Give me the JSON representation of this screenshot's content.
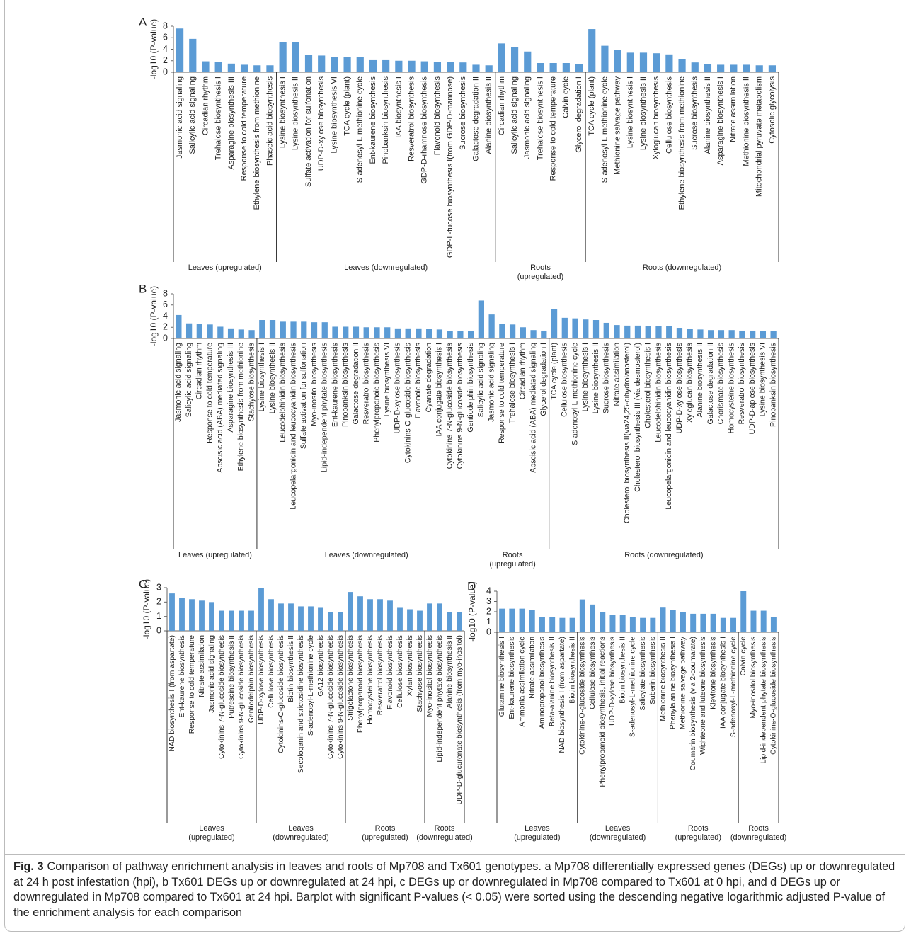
{
  "chart_data": [
    {
      "type": "bar",
      "panel": "A",
      "ylabel": "-log10 (P-value)",
      "ylim": [
        0,
        8
      ],
      "yticks": [
        0,
        2,
        4,
        6,
        8
      ],
      "color": "#5b9bd5",
      "groups": [
        {
          "name": "Leaves (upregulated)",
          "categories": [
            "Jasmonic acid signaling",
            "Salicylic acid signaling",
            "Circadian rhythm",
            "Trehalose biosynthesis I",
            "Asparagine biosynthesis III",
            "Response to cold temperature",
            "Ethylene biosynthesis from methionine",
            "Phaseic acid biosynthesis"
          ],
          "values": [
            7.6,
            5.8,
            1.9,
            1.8,
            1.5,
            1.3,
            1.2,
            1.2
          ]
        },
        {
          "name": "Leaves (downregulated)",
          "categories": [
            "Lysine biosynthesis I",
            "Lysine biosynthesis II",
            "Sulfate activation for sulfonation",
            "UDP-D-xylose biosynthesis",
            "Lysine biosynthesis VI",
            "TCA cycle (plant)",
            "S-adenosyl-L-methionine cycle",
            "Ent-kaurene biosynthesis",
            "Pinobanksin biosynthesis",
            "IAA biosynthesis I",
            "Resveratrol biosynthesis",
            "GDP-D-rhamnose biosynthesis",
            "Flavonoid biosynthesis",
            "GDP-L-fucose biosynthesis I(from GDP-D-mannose)",
            "Sucrose biosynthesis",
            "Galactose degradation II",
            "Alanine biosynthesis II"
          ],
          "values": [
            5.2,
            5.2,
            3.0,
            2.9,
            2.7,
            2.7,
            2.6,
            2.1,
            2.1,
            2.0,
            2.0,
            1.9,
            1.8,
            1.8,
            1.7,
            1.3,
            1.2
          ]
        },
        {
          "name": "Roots\n(upregulated)",
          "categories": [
            "Circadian rhythm",
            "Salicylic acid signaling",
            "Jasmonic acid signaling",
            "Trehalose biosynthesis I",
            "Response to cold temperature",
            "Calvin cycle",
            "Glycerol degradation I"
          ],
          "values": [
            5.0,
            4.4,
            3.6,
            1.6,
            1.6,
            1.6,
            1.4
          ]
        },
        {
          "name": "Roots (downregulated)",
          "categories": [
            "TCA cycle (plant)",
            "S-adenosyl-L-methionine cycle",
            "Methionine salvage pathway",
            "Lysine biosynthesis I",
            "Lysine biosynthesis II",
            "Xyloglucan biosynthesis",
            "Cellulose biosynthesis",
            "Ethylene biosynthesis from methionine",
            "Sucrose biosynthesis",
            "Alanine biosynthesis II",
            "Asparagine biosynthesis I",
            "Nitrate assimilation",
            "Methionine biosynthesis II",
            "Mitochondrial pyruvate metabolism",
            "Cytosolic glycolysis"
          ],
          "values": [
            7.5,
            4.6,
            3.9,
            3.4,
            3.4,
            3.3,
            3.1,
            2.3,
            1.7,
            1.4,
            1.3,
            1.3,
            1.3,
            1.2,
            1.2
          ]
        }
      ]
    },
    {
      "type": "bar",
      "panel": "B",
      "ylabel": "-log10 (P-value)",
      "ylim": [
        0,
        8
      ],
      "yticks": [
        0,
        2,
        4,
        6,
        8
      ],
      "color": "#5b9bd5",
      "groups": [
        {
          "name": "Leaves (upregulated)",
          "categories": [
            "Jasmonic acid signaling",
            "Salicylic acid signaling",
            "Circadian rhythm",
            "Response to cold temperature",
            "Abscisic acid (ABA) mediated signaling",
            "Asparagine biosynthesis III",
            "Ethylene biosynthesis from methionine",
            "Stachyose biosynthesis"
          ],
          "values": [
            4.2,
            2.7,
            2.6,
            2.5,
            2.1,
            1.8,
            1.6,
            1.5
          ]
        },
        {
          "name": "Leaves (downregulated)",
          "categories": [
            "Lysine biosynthesis I",
            "Lysine biosynthesis II",
            "Leucodelphinidin biosynthesis",
            "Leucopelargonidin and leucocyanidin biosynthesis",
            "Sulfate activation for sulfonation",
            "Myo-inositol biosynthesis",
            "Lipid-independent phytate biosynthesis",
            "Ent-kaurene biosynthesis",
            "Pinobanksin biosynthesis",
            "Galactose degradation II",
            "Resveratrol biosynthesis",
            "Phenylpropanoid biosynthesis",
            "Lysine biosynthesis VI",
            "UDP-D-xylose biosynthesis",
            "Cytokinins-O-glucoside biosynthesis",
            "Flavonoid biosynthesis",
            "Cyanate degradation",
            "IAA conjugate biosynthesis I",
            "Cytokinins 7-N-glucoside biosynthesis",
            "Cytokinins 9-N-glucoside biosynthesis",
            "Gentiodelphin biosynthesis"
          ],
          "values": [
            3.3,
            3.3,
            3.0,
            3.0,
            3.0,
            2.9,
            2.9,
            2.1,
            2.1,
            2.1,
            2.0,
            2.0,
            2.0,
            1.8,
            1.8,
            1.8,
            1.7,
            1.6,
            1.3,
            1.3,
            1.3
          ]
        },
        {
          "name": "Roots\n(upregulated)",
          "categories": [
            "Salicylic acid signaling",
            "Jasmonic acid signaling",
            "Response to cold temperature",
            "Trehalose biosynthesis I",
            "Circadian rhythm",
            "Abscisic acid (ABA) mediated signaling",
            "Glycerol degradation I"
          ],
          "values": [
            6.8,
            4.3,
            2.6,
            2.5,
            2.0,
            1.5,
            1.4
          ]
        },
        {
          "name": "Roots (downregulated)",
          "categories": [
            "TCA cycle (plant)",
            "Cellulose biosynthesis",
            "S-adenosyl-L-methionine cycle",
            "Lysine biosynthesis I",
            "Lysine biosynthesis II",
            "Sucrose biosynthesis",
            "Nitrate assimilation",
            "Cholesterol biosynthesis II(via24,25-dihydrolanosterol)",
            "Cholesterol biosynthesis III (via desmosterol)",
            "Cholesterol biosynthesis I",
            "Leucodelphinidin biosynthesis",
            "Leucopelargonidin and leucocyanidin biosynthesis",
            "UDP-D-xylose biosynthesis",
            "Xyloglucan biosynthesis",
            "Alanine biosynthesis II",
            "Galactose degradation II",
            "Chorismate biosynthesis",
            "Homocysteine biosynthesis",
            "Resveratrol biosynthesis",
            "UDP-D-apiose biosynthesis",
            "Lysine biosynthesis VI",
            "Pinobanksin biosynthesis"
          ],
          "values": [
            5.3,
            3.7,
            3.6,
            3.4,
            3.3,
            2.8,
            2.4,
            2.3,
            2.3,
            2.2,
            2.2,
            2.2,
            1.9,
            1.7,
            1.6,
            1.5,
            1.5,
            1.5,
            1.4,
            1.4,
            1.3,
            1.3
          ]
        }
      ]
    },
    {
      "type": "bar",
      "panel": "C",
      "ylabel": "-log10 (P-value)",
      "ylim": [
        0,
        3
      ],
      "yticks": [
        0,
        1,
        2,
        3
      ],
      "color": "#5b9bd5",
      "groups": [
        {
          "name": "Leaves\n(upregulated)",
          "categories": [
            "NAD biosynthesis I (from aspartate)",
            "Ent-kaurene biosynthesis",
            "Response to cold temperature",
            "Nitrate assimilation",
            "Jasmonic acid signaling",
            "Cytokinins 7-N-glucoside biosynthesis",
            "Putrescine biosynthesis II",
            "Cytokinins 9-N-glucoside biosynthesis",
            "Gentiodelphin biosynthesis"
          ],
          "values": [
            2.6,
            2.3,
            2.2,
            2.1,
            2.0,
            1.4,
            1.4,
            1.4,
            1.4
          ]
        },
        {
          "name": "Leaves\n(downregulated)",
          "categories": [
            "UDP-D-xylose biosynthesis",
            "Cellulose biosynthesis",
            "Cytokinins-O-glucoside biosynthesis",
            "Biotin biosynthesis II",
            "Secologanin and strictosidine biosynthesis",
            "S-adenosyl-L-methionine cycle",
            "GA12 biosynthesis",
            "Cytokinins 7-N-glucoside biosynthesis",
            "Cytokinins 9-N-glucoside biosynthesis"
          ],
          "values": [
            3.0,
            2.2,
            1.9,
            1.9,
            1.7,
            1.7,
            1.6,
            1.3,
            1.3
          ]
        },
        {
          "name": "Roots\n(upregulated)",
          "categories": [
            "Strigolactone biosynthesis",
            "Phenylpropanoid biosynthesis",
            "Homocysteine biosynthesis",
            "Resveratrol biosynthesis",
            "Flavonoid biosynthesis",
            "Cellulose biosynthesis",
            "Xylan biosynthesis",
            "Stachyose biosynthesis"
          ],
          "values": [
            2.7,
            2.4,
            2.2,
            2.2,
            2.1,
            1.6,
            1.5,
            1.4
          ]
        },
        {
          "name": "Roots\n(downregulated)",
          "categories": [
            "Myo-inositol biosynthesis",
            "Lipid-independent phytate biosynthesis",
            "Alanine biosynthesis II",
            "UDP-D-glucuronate biosynthesis (from myo-inositol)"
          ],
          "values": [
            1.9,
            1.9,
            1.3,
            1.3
          ]
        }
      ]
    },
    {
      "type": "bar",
      "panel": "D",
      "ylabel": "-log10 (P-value)",
      "ylim": [
        0,
        4
      ],
      "yticks": [
        0,
        1,
        2,
        3,
        4
      ],
      "color": "#5b9bd5",
      "groups": [
        {
          "name": "Leaves\n(upregulated)",
          "categories": [
            "Glutamine biosynthesis I",
            "Ent-kaurene biosynthesis",
            "Ammonia assimilation cycle",
            "Nitrate assimilation",
            "Aminopropanol biosynthesis",
            "Beta-alanine biosynthesis II",
            "NAD biosynthesis I (from aspartate)",
            "Biotin biosynthesis II"
          ],
          "values": [
            2.3,
            2.3,
            2.3,
            2.2,
            1.5,
            1.5,
            1.4,
            1.4
          ]
        },
        {
          "name": "Leaves\n(downregulated)",
          "categories": [
            "Cytokinins-O-glucoside biosynthesis",
            "Cellulose biosynthesis",
            "Phenylpropanoid biosynthesis, initial reactions",
            "UDP-D-xylose biosynthesis",
            "Biotin biosynthesis II",
            "S-adenosyl-L-methionine cycle",
            "Salicylate biosynthesis",
            "Suberin biosynthesis"
          ],
          "values": [
            3.2,
            2.7,
            2.0,
            1.7,
            1.7,
            1.5,
            1.4,
            1.4
          ]
        },
        {
          "name": "Roots\n(upregulated)",
          "categories": [
            "Methionine biosynthesis II",
            "Phenylalanine biosynthesis I",
            "Methionine salvage pathway",
            "Coumarin biosynthesis (via 2-coumarate)",
            "Wighteone and luteone biosynthesis",
            "Kievitone biosynthesis",
            "IAA conjugate biosynthesis I",
            "S-adenosyl-L-methionine cycle"
          ],
          "values": [
            2.4,
            2.2,
            2.0,
            1.8,
            1.8,
            1.8,
            1.4,
            1.4
          ]
        },
        {
          "name": "Roots\n(downregulated)",
          "categories": [
            "Calvin cycle",
            "Myo-inositol biosynthesis",
            "Lipid-independent phytate biosynthesis",
            "Cytokinins-O-glucoside biosynthesis"
          ],
          "values": [
            4.0,
            2.1,
            2.1,
            1.5
          ]
        }
      ]
    }
  ],
  "caption": {
    "label": "Fig. 3",
    "text": "Comparison of pathway enrichment analysis in leaves and roots of Mp708 and Tx601 genotypes. a Mp708 differentially expressed genes (DEGs) up or downregulated at 24 h post infestation (hpi), b Tx601 DEGs up or downregulated at 24 hpi, c DEGs up or downregulated in Mp708 compared to Tx601 at 0 hpi, and d DEGs up or downregulated in Mp708 compared to Tx601 at 24 hpi. Barplot with significant P-values (< 0.05) were sorted using the descending negative logarithmic adjusted P-value of the enrichment analysis for each comparison"
  }
}
